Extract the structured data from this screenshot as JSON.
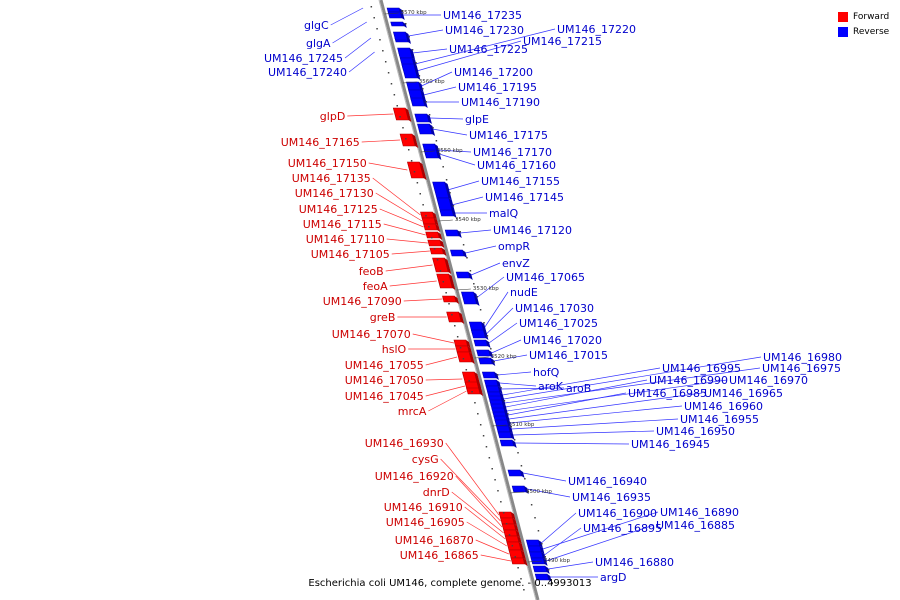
{
  "caption": "Escherichia coli UM146, complete genome. - 0..4993013",
  "legend": {
    "forward_label": "Forward",
    "reverse_label": "Reverse",
    "forward_color": "#ff0000",
    "reverse_color": "#0000ff"
  },
  "colors": {
    "forward_label": "#cc0000",
    "reverse_label": "#0000cc",
    "forward_line": "#ff3333",
    "reverse_line": "#3333ff",
    "backbone": "#888888"
  },
  "scale_ticks": [
    "3570 kbp",
    "3560 kbp",
    "3550 kbp",
    "3540 kbp",
    "3530 kbp",
    "3520 kbp",
    "3510 kbp",
    "3500 kbp",
    "3490 kbp"
  ],
  "reverse_genes": [
    "glgC",
    "glgA",
    "UM146_17245",
    "UM146_17240",
    "UM146_17235",
    "UM146_17230",
    "UM146_17225",
    "UM146_17220",
    "UM146_17215",
    "UM146_17200",
    "UM146_17195",
    "UM146_17190",
    "glpE",
    "UM146_17175",
    "UM146_17170",
    "UM146_17160",
    "UM146_17155",
    "UM146_17145",
    "malQ",
    "UM146_17120",
    "ompR",
    "envZ",
    "UM146_17065",
    "nudE",
    "UM146_17030",
    "UM146_17025",
    "UM146_17020",
    "UM146_17015",
    "hofQ",
    "aroK",
    "aroB",
    "UM146_16995",
    "UM146_16980",
    "UM146_16975",
    "UM146_16990",
    "UM146_16970",
    "UM146_16985",
    "UM146_16965",
    "UM146_16960",
    "UM146_16955",
    "UM146_16950",
    "UM146_16945",
    "UM146_16940",
    "UM146_16935",
    "UM146_16900",
    "UM146_16890",
    "UM146_16895",
    "UM146_16885",
    "UM146_16880",
    "argD"
  ],
  "forward_genes": [
    "glpD",
    "UM146_17165",
    "UM146_17150",
    "UM146_17135",
    "UM146_17130",
    "UM146_17125",
    "UM146_17115",
    "UM146_17110",
    "UM146_17105",
    "feoB",
    "feoA",
    "UM146_17090",
    "greB",
    "UM146_17070",
    "hslO",
    "UM146_17055",
    "UM146_17050",
    "UM146_17045",
    "mrcA",
    "UM146_16930",
    "cysG",
    "UM146_16920",
    "dnrD",
    "UM146_16910",
    "UM146_16905",
    "UM146_16870",
    "UM146_16865"
  ]
}
